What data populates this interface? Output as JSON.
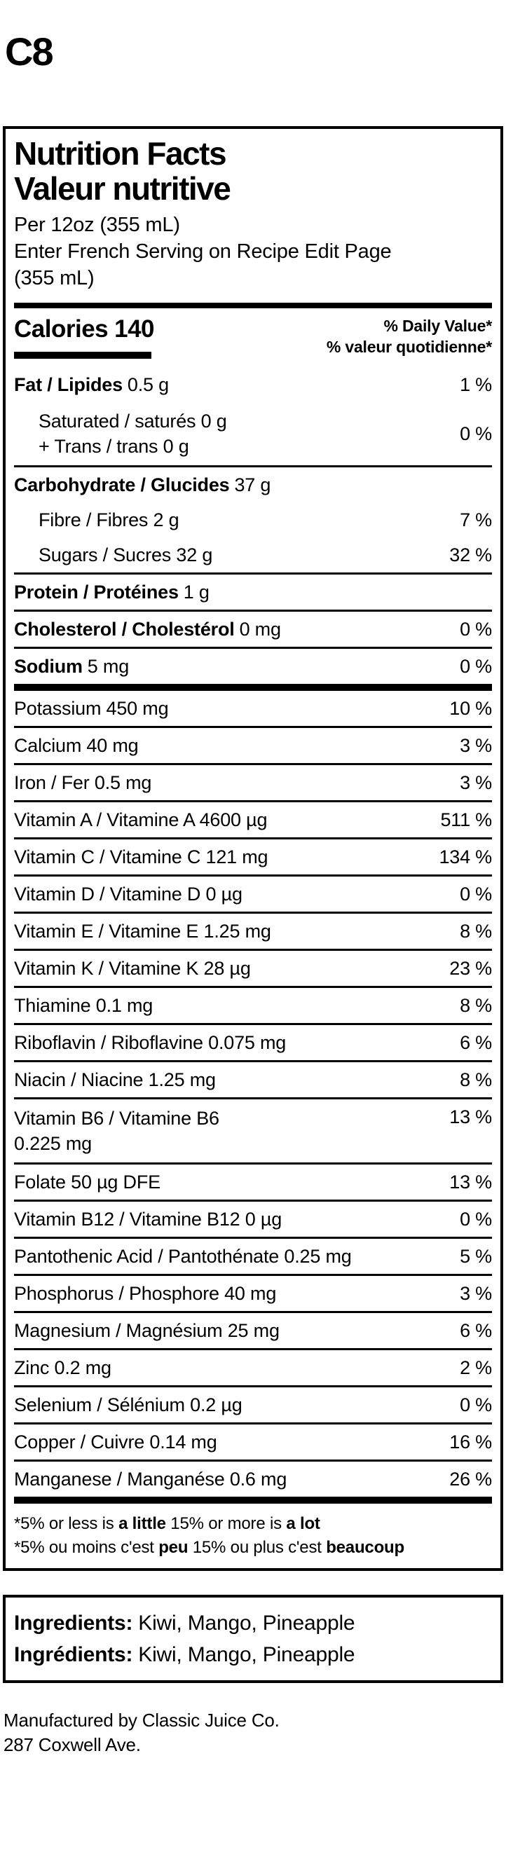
{
  "page_label": "C8",
  "nft": {
    "title_en": "Nutrition Facts",
    "title_fr": "Valeur nutritive",
    "serving_en": "Per 12oz (355 mL)",
    "serving_fr_line1": "Enter French Serving on Recipe Edit Page",
    "serving_fr_line2": "(355 mL)",
    "calories_label": "Calories",
    "calories_value": "140",
    "dv_header_en": "% Daily Value*",
    "dv_header_fr": "% valeur quotidienne*",
    "fat": {
      "bold": "Fat / Lipides",
      "rest": "0.5 g",
      "dv": "1 %"
    },
    "sat_trans": {
      "line1": "Saturated / saturés 0 g",
      "line2": "+ Trans / trans 0 g",
      "dv": "0 %"
    },
    "carb": {
      "bold": "Carbohydrate / Glucides",
      "rest": "37 g"
    },
    "fibre": {
      "text": "Fibre / Fibres 2 g",
      "dv": "7 %"
    },
    "sugars": {
      "text": "Sugars / Sucres 32 g",
      "dv": "32 %"
    },
    "protein": {
      "bold": "Protein / Protéines",
      "rest": "1 g"
    },
    "cholesterol": {
      "bold": "Cholesterol / Cholestérol",
      "rest": "0 mg",
      "dv": "0 %"
    },
    "sodium": {
      "bold": "Sodium",
      "rest": "5 mg",
      "dv": "0 %"
    },
    "micronutrients": [
      {
        "text": "Potassium 450 mg",
        "dv": "10 %"
      },
      {
        "text": "Calcium 40 mg",
        "dv": "3 %"
      },
      {
        "text": "Iron / Fer 0.5 mg",
        "dv": "3 %"
      },
      {
        "text": "Vitamin A / Vitamine A 4600 µg",
        "dv": "511 %"
      },
      {
        "text": "Vitamin C / Vitamine C 121 mg",
        "dv": "134 %"
      },
      {
        "text": "Vitamin D / Vitamine D 0 µg",
        "dv": "0 %"
      },
      {
        "text": "Vitamin E / Vitamine E 1.25 mg",
        "dv": "8 %"
      },
      {
        "text": "Vitamin K / Vitamine K 28 µg",
        "dv": "23 %"
      },
      {
        "text": "Thiamine 0.1 mg",
        "dv": "8 %"
      },
      {
        "text": "Riboflavin / Riboflavine 0.075 mg",
        "dv": "6 %"
      },
      {
        "text": "Niacin / Niacine 1.25 mg",
        "dv": "8 %"
      },
      {
        "text": "Vitamin B6 / Vitamine B6",
        "text2": "0.225 mg",
        "dv": "13 %"
      },
      {
        "text": "Folate 50 µg DFE",
        "dv": "13 %"
      },
      {
        "text": "Vitamin B12 / Vitamine B12 0 µg",
        "dv": "0 %"
      },
      {
        "text": "Pantothenic Acid / Pantothénate 0.25 mg",
        "dv": "5 %"
      },
      {
        "text": "Phosphorus / Phosphore 40 mg",
        "dv": "3 %"
      },
      {
        "text": "Magnesium / Magnésium 25 mg",
        "dv": "6 %"
      },
      {
        "text": "Zinc 0.2 mg",
        "dv": "2 %"
      },
      {
        "text": "Selenium / Sélénium 0.2 µg",
        "dv": "0 %"
      },
      {
        "text": "Copper / Cuivre 0.14 mg",
        "dv": "16 %"
      },
      {
        "text": "Manganese / Manganése 0.6 mg",
        "dv": "26 %"
      }
    ],
    "footnote_en": {
      "p1": "*5% or less is ",
      "b1": "a little",
      "p2": " 15% or more is ",
      "b2": "a lot"
    },
    "footnote_fr": {
      "p1": "*5% ou moins c'est ",
      "b1": "peu",
      "p2": " 15% ou plus c'est ",
      "b2": "beaucoup"
    }
  },
  "ingredients": {
    "label_en": "Ingredients:",
    "value_en": "Kiwi, Mango, Pineapple",
    "label_fr": "Ingrédients:",
    "value_fr": "Kiwi, Mango, Pineapple"
  },
  "footer": {
    "line1": "Manufactured by Classic Juice Co.",
    "line2": "287 Coxwell Ave."
  }
}
